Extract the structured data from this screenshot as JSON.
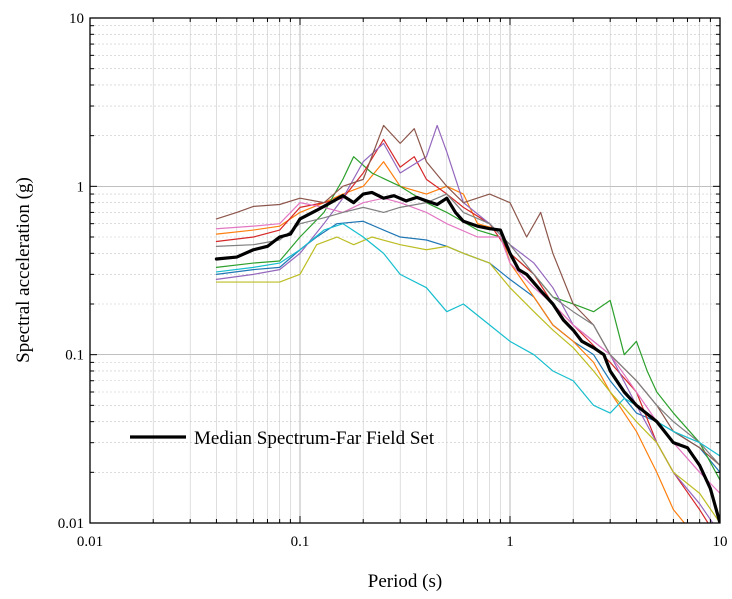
{
  "chart_data": {
    "type": "line",
    "xscale": "log",
    "yscale": "log",
    "xlim": [
      0.01,
      10
    ],
    "ylim": [
      0.01,
      10
    ],
    "xlabel": "Period (s)",
    "ylabel": "Spectral acceleration (g)",
    "xticks": [
      {
        "value": 0.01,
        "label": "0.01"
      },
      {
        "value": 0.1,
        "label": "0.1"
      },
      {
        "value": 1,
        "label": "1"
      },
      {
        "value": 10,
        "label": "10"
      }
    ],
    "yticks": [
      {
        "value": 0.01,
        "label": "0.01"
      },
      {
        "value": 0.1,
        "label": "0.1"
      },
      {
        "value": 1,
        "label": "1"
      },
      {
        "value": 10,
        "label": "10"
      }
    ],
    "grid": true,
    "legend": {
      "position": "lower-left",
      "entries": [
        "Median Spectrum-Far Field Set"
      ]
    },
    "series": [
      {
        "name": "Median Spectrum-Far Field Set",
        "color": "#000000",
        "width": 3.2,
        "points": [
          [
            0.04,
            0.37
          ],
          [
            0.05,
            0.38
          ],
          [
            0.06,
            0.42
          ],
          [
            0.07,
            0.44
          ],
          [
            0.08,
            0.5
          ],
          [
            0.09,
            0.52
          ],
          [
            0.1,
            0.64
          ],
          [
            0.12,
            0.72
          ],
          [
            0.14,
            0.8
          ],
          [
            0.16,
            0.88
          ],
          [
            0.18,
            0.8
          ],
          [
            0.2,
            0.9
          ],
          [
            0.22,
            0.92
          ],
          [
            0.25,
            0.85
          ],
          [
            0.28,
            0.88
          ],
          [
            0.32,
            0.82
          ],
          [
            0.36,
            0.86
          ],
          [
            0.4,
            0.82
          ],
          [
            0.45,
            0.78
          ],
          [
            0.5,
            0.85
          ],
          [
            0.55,
            0.7
          ],
          [
            0.6,
            0.62
          ],
          [
            0.7,
            0.58
          ],
          [
            0.8,
            0.56
          ],
          [
            0.9,
            0.55
          ],
          [
            1.0,
            0.4
          ],
          [
            1.1,
            0.32
          ],
          [
            1.2,
            0.3
          ],
          [
            1.4,
            0.24
          ],
          [
            1.6,
            0.2
          ],
          [
            1.8,
            0.16
          ],
          [
            2.0,
            0.14
          ],
          [
            2.2,
            0.12
          ],
          [
            2.5,
            0.11
          ],
          [
            2.8,
            0.1
          ],
          [
            3.0,
            0.08
          ],
          [
            3.5,
            0.06
          ],
          [
            4.0,
            0.05
          ],
          [
            5.0,
            0.04
          ],
          [
            6.0,
            0.03
          ],
          [
            7.0,
            0.028
          ],
          [
            8.0,
            0.022
          ],
          [
            9.0,
            0.016
          ],
          [
            10.0,
            0.01
          ]
        ]
      },
      {
        "color": "#1f77b4",
        "width": 1.2,
        "points": [
          [
            0.04,
            0.3
          ],
          [
            0.06,
            0.32
          ],
          [
            0.08,
            0.33
          ],
          [
            0.1,
            0.42
          ],
          [
            0.12,
            0.5
          ],
          [
            0.15,
            0.6
          ],
          [
            0.2,
            0.62
          ],
          [
            0.25,
            0.55
          ],
          [
            0.3,
            0.5
          ],
          [
            0.4,
            0.48
          ],
          [
            0.5,
            0.44
          ],
          [
            0.6,
            0.4
          ],
          [
            0.8,
            0.35
          ],
          [
            1.0,
            0.28
          ],
          [
            1.3,
            0.22
          ],
          [
            1.6,
            0.15
          ],
          [
            2.0,
            0.12
          ],
          [
            2.5,
            0.1
          ],
          [
            3.0,
            0.07
          ],
          [
            4.0,
            0.045
          ],
          [
            5.0,
            0.04
          ],
          [
            6.0,
            0.035
          ],
          [
            8.0,
            0.028
          ],
          [
            10.0,
            0.02
          ]
        ]
      },
      {
        "color": "#ff7f0e",
        "width": 1.2,
        "points": [
          [
            0.04,
            0.52
          ],
          [
            0.06,
            0.55
          ],
          [
            0.08,
            0.58
          ],
          [
            0.1,
            0.7
          ],
          [
            0.13,
            0.8
          ],
          [
            0.16,
            0.9
          ],
          [
            0.2,
            1.0
          ],
          [
            0.25,
            1.4
          ],
          [
            0.3,
            1.0
          ],
          [
            0.4,
            0.9
          ],
          [
            0.5,
            1.0
          ],
          [
            0.6,
            0.9
          ],
          [
            0.7,
            0.6
          ],
          [
            0.9,
            0.55
          ],
          [
            1.0,
            0.35
          ],
          [
            1.3,
            0.22
          ],
          [
            1.6,
            0.15
          ],
          [
            2.0,
            0.12
          ],
          [
            2.5,
            0.09
          ],
          [
            3.0,
            0.06
          ],
          [
            4.0,
            0.035
          ],
          [
            5.0,
            0.02
          ],
          [
            6.0,
            0.012
          ],
          [
            7.0,
            0.0095
          ]
        ]
      },
      {
        "color": "#2ca02c",
        "width": 1.2,
        "points": [
          [
            0.04,
            0.33
          ],
          [
            0.06,
            0.35
          ],
          [
            0.08,
            0.36
          ],
          [
            0.1,
            0.5
          ],
          [
            0.13,
            0.7
          ],
          [
            0.16,
            1.1
          ],
          [
            0.18,
            1.5
          ],
          [
            0.22,
            1.2
          ],
          [
            0.3,
            1.0
          ],
          [
            0.4,
            0.8
          ],
          [
            0.5,
            0.7
          ],
          [
            0.7,
            0.55
          ],
          [
            0.9,
            0.5
          ],
          [
            1.0,
            0.4
          ],
          [
            1.3,
            0.3
          ],
          [
            1.6,
            0.22
          ],
          [
            2.0,
            0.2
          ],
          [
            2.5,
            0.18
          ],
          [
            3.0,
            0.21
          ],
          [
            3.5,
            0.1
          ],
          [
            4.0,
            0.12
          ],
          [
            4.5,
            0.08
          ],
          [
            5.0,
            0.06
          ],
          [
            6.0,
            0.045
          ],
          [
            8.0,
            0.03
          ],
          [
            10.0,
            0.018
          ]
        ]
      },
      {
        "color": "#d62728",
        "width": 1.2,
        "points": [
          [
            0.04,
            0.47
          ],
          [
            0.06,
            0.5
          ],
          [
            0.08,
            0.55
          ],
          [
            0.1,
            0.75
          ],
          [
            0.13,
            0.8
          ],
          [
            0.16,
            0.85
          ],
          [
            0.2,
            1.2
          ],
          [
            0.25,
            1.9
          ],
          [
            0.3,
            1.3
          ],
          [
            0.35,
            1.5
          ],
          [
            0.4,
            1.1
          ],
          [
            0.5,
            0.9
          ],
          [
            0.6,
            0.75
          ],
          [
            0.8,
            0.6
          ],
          [
            1.0,
            0.4
          ],
          [
            1.3,
            0.3
          ],
          [
            1.6,
            0.2
          ],
          [
            2.0,
            0.15
          ],
          [
            3.0,
            0.09
          ],
          [
            4.0,
            0.06
          ],
          [
            5.0,
            0.03
          ],
          [
            6.0,
            0.02
          ],
          [
            8.0,
            0.012
          ],
          [
            9.0,
            0.0095
          ]
        ]
      },
      {
        "color": "#9467bd",
        "width": 1.2,
        "points": [
          [
            0.04,
            0.28
          ],
          [
            0.06,
            0.3
          ],
          [
            0.08,
            0.32
          ],
          [
            0.1,
            0.4
          ],
          [
            0.13,
            0.6
          ],
          [
            0.16,
            0.85
          ],
          [
            0.2,
            1.4
          ],
          [
            0.25,
            1.8
          ],
          [
            0.3,
            1.2
          ],
          [
            0.4,
            1.5
          ],
          [
            0.45,
            2.3
          ],
          [
            0.5,
            1.6
          ],
          [
            0.6,
            0.8
          ],
          [
            0.8,
            0.6
          ],
          [
            1.0,
            0.45
          ],
          [
            1.3,
            0.35
          ],
          [
            1.6,
            0.25
          ],
          [
            2.0,
            0.15
          ],
          [
            3.0,
            0.1
          ],
          [
            4.0,
            0.05
          ],
          [
            5.0,
            0.03
          ],
          [
            6.0,
            0.02
          ],
          [
            8.0,
            0.013
          ],
          [
            9.5,
            0.0095
          ]
        ]
      },
      {
        "color": "#8c564b",
        "width": 1.2,
        "points": [
          [
            0.04,
            0.64
          ],
          [
            0.05,
            0.7
          ],
          [
            0.06,
            0.76
          ],
          [
            0.08,
            0.78
          ],
          [
            0.1,
            0.85
          ],
          [
            0.13,
            0.8
          ],
          [
            0.16,
            1.0
          ],
          [
            0.2,
            1.1
          ],
          [
            0.25,
            2.3
          ],
          [
            0.3,
            1.8
          ],
          [
            0.35,
            2.2
          ],
          [
            0.4,
            1.4
          ],
          [
            0.5,
            1.0
          ],
          [
            0.6,
            0.8
          ],
          [
            0.8,
            0.9
          ],
          [
            1.0,
            0.8
          ],
          [
            1.2,
            0.5
          ],
          [
            1.4,
            0.7
          ],
          [
            1.6,
            0.4
          ],
          [
            2.0,
            0.2
          ],
          [
            2.5,
            0.15
          ],
          [
            3.0,
            0.1
          ],
          [
            4.0,
            0.07
          ],
          [
            5.0,
            0.05
          ],
          [
            6.0,
            0.035
          ],
          [
            8.0,
            0.028
          ],
          [
            10.0,
            0.022
          ]
        ]
      },
      {
        "color": "#e377c2",
        "width": 1.2,
        "points": [
          [
            0.04,
            0.56
          ],
          [
            0.06,
            0.58
          ],
          [
            0.08,
            0.6
          ],
          [
            0.1,
            0.8
          ],
          [
            0.13,
            0.75
          ],
          [
            0.16,
            0.7
          ],
          [
            0.2,
            0.8
          ],
          [
            0.25,
            0.85
          ],
          [
            0.3,
            0.8
          ],
          [
            0.4,
            0.7
          ],
          [
            0.5,
            0.6
          ],
          [
            0.7,
            0.5
          ],
          [
            0.9,
            0.5
          ],
          [
            1.0,
            0.35
          ],
          [
            1.3,
            0.25
          ],
          [
            1.6,
            0.2
          ],
          [
            2.0,
            0.15
          ],
          [
            2.5,
            0.12
          ],
          [
            3.0,
            0.1
          ],
          [
            4.0,
            0.06
          ],
          [
            5.0,
            0.04
          ],
          [
            6.0,
            0.03
          ],
          [
            8.0,
            0.02
          ],
          [
            10.0,
            0.015
          ]
        ]
      },
      {
        "color": "#7f7f7f",
        "width": 1.2,
        "points": [
          [
            0.04,
            0.44
          ],
          [
            0.06,
            0.45
          ],
          [
            0.08,
            0.48
          ],
          [
            0.1,
            0.6
          ],
          [
            0.13,
            0.65
          ],
          [
            0.16,
            0.7
          ],
          [
            0.2,
            0.75
          ],
          [
            0.25,
            0.7
          ],
          [
            0.3,
            0.75
          ],
          [
            0.4,
            0.8
          ],
          [
            0.5,
            0.9
          ],
          [
            0.6,
            0.7
          ],
          [
            0.8,
            0.6
          ],
          [
            1.0,
            0.45
          ],
          [
            1.3,
            0.3
          ],
          [
            1.6,
            0.22
          ],
          [
            2.0,
            0.18
          ],
          [
            2.5,
            0.15
          ],
          [
            3.0,
            0.1
          ],
          [
            4.0,
            0.07
          ],
          [
            5.0,
            0.05
          ],
          [
            6.0,
            0.04
          ],
          [
            8.0,
            0.03
          ],
          [
            10.0,
            0.022
          ]
        ]
      },
      {
        "color": "#bcbd22",
        "width": 1.2,
        "points": [
          [
            0.04,
            0.27
          ],
          [
            0.06,
            0.27
          ],
          [
            0.08,
            0.27
          ],
          [
            0.1,
            0.3
          ],
          [
            0.12,
            0.45
          ],
          [
            0.15,
            0.5
          ],
          [
            0.18,
            0.45
          ],
          [
            0.22,
            0.5
          ],
          [
            0.3,
            0.45
          ],
          [
            0.4,
            0.42
          ],
          [
            0.5,
            0.44
          ],
          [
            0.6,
            0.4
          ],
          [
            0.8,
            0.35
          ],
          [
            1.0,
            0.25
          ],
          [
            1.3,
            0.18
          ],
          [
            1.6,
            0.14
          ],
          [
            2.0,
            0.11
          ],
          [
            2.5,
            0.08
          ],
          [
            3.0,
            0.06
          ],
          [
            4.0,
            0.04
          ],
          [
            5.0,
            0.03
          ],
          [
            6.0,
            0.02
          ],
          [
            8.0,
            0.015
          ],
          [
            10.0,
            0.01
          ]
        ]
      },
      {
        "color": "#17becf",
        "width": 1.2,
        "points": [
          [
            0.04,
            0.31
          ],
          [
            0.06,
            0.33
          ],
          [
            0.08,
            0.35
          ],
          [
            0.1,
            0.42
          ],
          [
            0.13,
            0.55
          ],
          [
            0.16,
            0.6
          ],
          [
            0.2,
            0.5
          ],
          [
            0.25,
            0.4
          ],
          [
            0.3,
            0.3
          ],
          [
            0.4,
            0.25
          ],
          [
            0.5,
            0.18
          ],
          [
            0.6,
            0.2
          ],
          [
            0.8,
            0.15
          ],
          [
            1.0,
            0.12
          ],
          [
            1.3,
            0.1
          ],
          [
            1.6,
            0.08
          ],
          [
            2.0,
            0.07
          ],
          [
            2.5,
            0.05
          ],
          [
            3.0,
            0.045
          ],
          [
            3.5,
            0.055
          ],
          [
            4.0,
            0.05
          ],
          [
            5.0,
            0.04
          ],
          [
            6.0,
            0.035
          ],
          [
            8.0,
            0.03
          ],
          [
            10.0,
            0.025
          ]
        ]
      }
    ]
  }
}
